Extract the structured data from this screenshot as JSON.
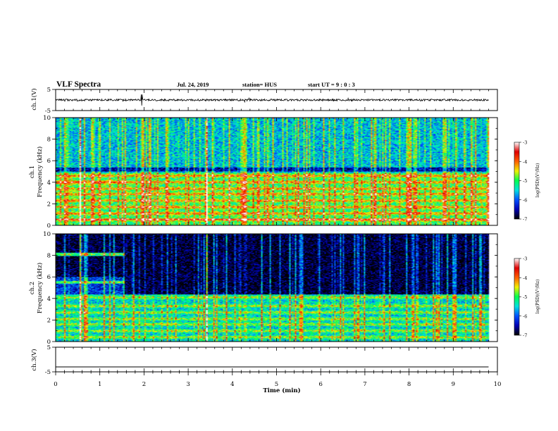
{
  "header": {
    "title": "VLF Spectra",
    "date": "Jul. 24, 2019",
    "station": "station= HUS",
    "start": "start UT =  9 : 0 : 3"
  },
  "chart_data": [
    {
      "type": "line",
      "panel": "ch1-waveform",
      "ylabel": "ch.1(V)",
      "ylim": [
        -5,
        5
      ],
      "yticks": [
        "5",
        "-5"
      ],
      "xlim": [
        0,
        10
      ]
    },
    {
      "type": "heatmap",
      "panel": "ch1-spectrogram",
      "ylabel": "ch.1 Frequency (kHz)",
      "ylabel_lines": [
        "ch.1",
        "Frequency (kHz)"
      ],
      "ylim": [
        0,
        10
      ],
      "yticks": [
        "0",
        "2",
        "4",
        "6",
        "8",
        "10"
      ],
      "xlim": [
        0,
        10
      ],
      "data_end_min": 9.8,
      "colorbar": {
        "label": "log(PSD)(V²/Hz)",
        "range": [
          -7,
          -3
        ],
        "ticks": [
          "-3",
          "-4",
          "-5",
          "-6",
          "-7"
        ],
        "colors": [
          "#000000",
          "#0000b4",
          "#0050ff",
          "#00e0e0",
          "#00ff50",
          "#f0f000",
          "#ff6000",
          "#e00000",
          "#ffffff"
        ]
      },
      "features": {
        "low_band_top_khz": 4.9,
        "band_centers_khz": [
          0.5,
          1.1,
          1.7,
          2.3,
          2.9,
          3.4,
          4.0,
          4.6
        ],
        "bright_line_khz": 0.55,
        "strong_spikes_min": [
          0.55,
          3.4
        ],
        "upper_band_level": -5.6,
        "lower_band_level": -5.1
      }
    },
    {
      "type": "heatmap",
      "panel": "ch2-spectrogram",
      "ylabel": "ch.2 Frequency (kHz)",
      "ylabel_lines": [
        "ch.2",
        "Frequency (kHz)"
      ],
      "ylim": [
        0,
        10
      ],
      "yticks": [
        "0",
        "2",
        "4",
        "6",
        "8",
        "10"
      ],
      "xlim": [
        0,
        10
      ],
      "data_end_min": 9.8,
      "colorbar": {
        "label": "log(PSD)(V²/Hz)",
        "range": [
          -7,
          -3
        ],
        "ticks": [
          "-3",
          "-4",
          "-5",
          "-6",
          "-7"
        ],
        "colors": [
          "#000000",
          "#0000b4",
          "#0050ff",
          "#00e0e0",
          "#00ff50",
          "#f0f000",
          "#ff6000",
          "#e00000",
          "#ffffff"
        ]
      },
      "features": {
        "low_band_top_khz": 4.4,
        "band_centers_khz": [
          0.4,
          1.0,
          1.6,
          2.1,
          2.7,
          3.3,
          4.1
        ],
        "early_lines_khz": [
          8.1,
          5.5,
          4.1
        ],
        "early_lines_end_min": 1.55,
        "strong_spikes_min": [
          0.55,
          3.4
        ],
        "upper_band_level": -6.9,
        "lower_band_level": -5.5
      }
    },
    {
      "type": "line",
      "panel": "ch3-waveform",
      "ylabel": "ch.3(V)",
      "ylim": [
        -5,
        5
      ],
      "yticks": [
        "5",
        "-5"
      ],
      "xlim": [
        0,
        10
      ],
      "values": [
        -3,
        -3
      ]
    }
  ],
  "xaxis": {
    "label": "Time (min)",
    "ticks": [
      "0",
      "1",
      "2",
      "3",
      "4",
      "5",
      "6",
      "7",
      "8",
      "9",
      "10"
    ]
  }
}
